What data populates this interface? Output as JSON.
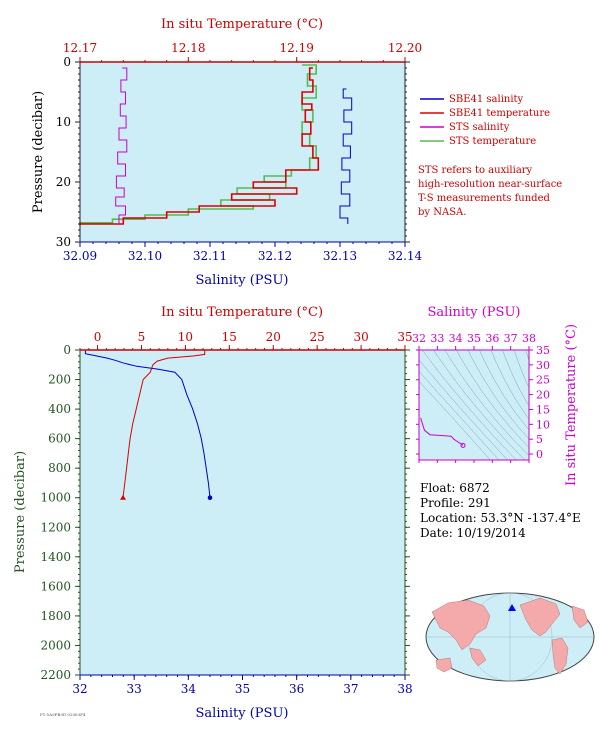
{
  "float_info": {
    "float": "Float:  6872",
    "profile": "Profile:  291",
    "location": "Location:  53.3°N  -137.4°E",
    "date": "Date:  10/19/2014"
  },
  "footnote": "STS refers to auxiliary high-resolution near-surface T-S measurements funded by NASA.",
  "footnote_lines": [
    "STS refers to auxiliary",
    "high-resolution near-surface",
    "T-S measurements funded",
    "by NASA."
  ],
  "colors": {
    "panel_bg": "#cdeef6",
    "sbe_salinity": "#0000cc",
    "sbe_temperature": "#dd0000",
    "sts_salinity": "#cc00cc",
    "sts_temperature": "#55bb55",
    "temp_axis": "#cc0000",
    "sal_axis": "#0000aa",
    "pres_axis": "#225522",
    "ts_axis": "#cc00cc"
  },
  "chart_data": [
    {
      "type": "line",
      "id": "near-surface",
      "xlabel_top": "In situ Temperature (°C)",
      "xlabel_bottom": "Salinity (PSU)",
      "ylabel": "Pressure (decibar)",
      "temp_ticks": [
        "12.17",
        "12.18",
        "12.19",
        "12.20"
      ],
      "temp_lim": [
        12.17,
        12.2
      ],
      "sal_ticks": [
        "32.09",
        "32.10",
        "32.11",
        "32.12",
        "32.13",
        "32.14"
      ],
      "sal_lim": [
        32.09,
        32.14
      ],
      "pres_ticks": [
        "0",
        "10",
        "20",
        "30"
      ],
      "pres_lim": [
        0,
        30
      ],
      "legend_position": "right",
      "legend": [
        "SBE41 salinity",
        "SBE41 temperature",
        "STS salinity",
        "STS temperature"
      ],
      "series": [
        {
          "name": "SBE41 salinity",
          "axis": "salinity",
          "points": [
            [
              32.131,
              4.5
            ],
            [
              32.1305,
              6
            ],
            [
              32.1318,
              8
            ],
            [
              32.1306,
              10
            ],
            [
              32.1318,
              12
            ],
            [
              32.1305,
              14
            ],
            [
              32.1316,
              16
            ],
            [
              32.1303,
              18
            ],
            [
              32.1315,
              20
            ],
            [
              32.1302,
              22
            ],
            [
              32.1315,
              24
            ],
            [
              32.13,
              26
            ],
            [
              32.1312,
              27
            ]
          ]
        },
        {
          "name": "SBE41 temperature",
          "axis": "temperature",
          "points": [
            [
              12.1915,
              1
            ],
            [
              12.1912,
              3
            ],
            [
              12.1915,
              5
            ],
            [
              12.1905,
              7
            ],
            [
              12.1914,
              8
            ],
            [
              12.1908,
              10
            ],
            [
              12.1913,
              12
            ],
            [
              12.1905,
              14
            ],
            [
              12.1915,
              16
            ],
            [
              12.192,
              18
            ],
            [
              12.189,
              20
            ],
            [
              12.186,
              21
            ],
            [
              12.19,
              22
            ],
            [
              12.184,
              23
            ],
            [
              12.188,
              24
            ],
            [
              12.181,
              25
            ],
            [
              12.178,
              26
            ],
            [
              12.174,
              27
            ],
            [
              12.17,
              27.2
            ]
          ]
        },
        {
          "name": "STS salinity",
          "axis": "salinity",
          "points": [
            [
              32.0965,
              1
            ],
            [
              32.0972,
              3
            ],
            [
              32.0963,
              5
            ],
            [
              32.097,
              7
            ],
            [
              32.0962,
              9
            ],
            [
              32.0971,
              11
            ],
            [
              32.096,
              13
            ],
            [
              32.0972,
              15
            ],
            [
              32.0958,
              17
            ],
            [
              32.097,
              19
            ],
            [
              32.0956,
              21
            ],
            [
              32.0968,
              22.5
            ],
            [
              32.0955,
              24
            ],
            [
              32.097,
              25.5
            ],
            [
              32.096,
              27
            ]
          ]
        },
        {
          "name": "STS temperature",
          "axis": "temperature",
          "points": [
            [
              12.1905,
              0.5
            ],
            [
              12.1918,
              2
            ],
            [
              12.191,
              4
            ],
            [
              12.1918,
              6
            ],
            [
              12.1905,
              8
            ],
            [
              12.1915,
              10
            ],
            [
              12.1905,
              12
            ],
            [
              12.1912,
              14
            ],
            [
              12.1918,
              16
            ],
            [
              12.1912,
              18
            ],
            [
              12.1895,
              19
            ],
            [
              12.187,
              20
            ],
            [
              12.189,
              21
            ],
            [
              12.1845,
              22
            ],
            [
              12.1875,
              23
            ],
            [
              12.183,
              24
            ],
            [
              12.186,
              24.5
            ],
            [
              12.18,
              25.5
            ],
            [
              12.176,
              26.2
            ],
            [
              12.173,
              26.8
            ],
            [
              12.17,
              27
            ]
          ]
        }
      ]
    },
    {
      "type": "line",
      "id": "full-profile",
      "xlabel_top": "In situ Temperature (°C)",
      "xlabel_bottom": "Salinity (PSU)",
      "ylabel": "Pressure (decibar)",
      "temp_ticks": [
        "0",
        "5",
        "10",
        "15",
        "20",
        "25",
        "30",
        "35"
      ],
      "temp_lim": [
        -2,
        35
      ],
      "sal_ticks": [
        "32",
        "33",
        "34",
        "35",
        "36",
        "37",
        "38"
      ],
      "sal_lim": [
        32,
        38
      ],
      "pres_ticks": [
        "0",
        "200",
        "400",
        "600",
        "800",
        "1000",
        "1200",
        "1400",
        "1600",
        "1800",
        "2000",
        "2200"
      ],
      "pres_lim": [
        0,
        2200
      ],
      "series": [
        {
          "name": "Salinity",
          "axis": "salinity",
          "points": [
            [
              32.1,
              5
            ],
            [
              32.1,
              25
            ],
            [
              32.3,
              40
            ],
            [
              32.5,
              55
            ],
            [
              32.65,
              70
            ],
            [
              32.82,
              90
            ],
            [
              33.05,
              110
            ],
            [
              33.45,
              130
            ],
            [
              33.75,
              150
            ],
            [
              33.88,
              200
            ],
            [
              33.97,
              300
            ],
            [
              34.08,
              400
            ],
            [
              34.17,
              500
            ],
            [
              34.24,
              600
            ],
            [
              34.29,
              700
            ],
            [
              34.33,
              800
            ],
            [
              34.37,
              900
            ],
            [
              34.4,
              1000
            ]
          ]
        },
        {
          "name": "Temperature",
          "axis": "temperature",
          "points": [
            [
              12.2,
              5
            ],
            [
              12.2,
              30
            ],
            [
              11.0,
              40
            ],
            [
              8.0,
              55
            ],
            [
              6.8,
              75
            ],
            [
              6.3,
              100
            ],
            [
              6.0,
              150
            ],
            [
              5.2,
              200
            ],
            [
              4.8,
              300
            ],
            [
              4.4,
              400
            ],
            [
              4.0,
              500
            ],
            [
              3.7,
              600
            ],
            [
              3.5,
              700
            ],
            [
              3.3,
              800
            ],
            [
              3.1,
              900
            ],
            [
              2.9,
              1000
            ]
          ]
        }
      ]
    },
    {
      "type": "line",
      "id": "ts-diagram",
      "xlabel_top": "Salinity (PSU)",
      "ylabel_right": "In situ Temperature (°C)",
      "sal_ticks": [
        "32",
        "33",
        "34",
        "35",
        "36",
        "37",
        "38"
      ],
      "sal_lim": [
        32,
        38
      ],
      "temp_ticks": [
        "0",
        "5",
        "10",
        "15",
        "20",
        "25",
        "30",
        "35"
      ],
      "temp_lim": [
        -2,
        35
      ],
      "points": [
        [
          32.1,
          12.2
        ],
        [
          32.12,
          11.5
        ],
        [
          32.3,
          8.0
        ],
        [
          32.6,
          6.5
        ],
        [
          33.3,
          6.2
        ],
        [
          33.75,
          6.0
        ],
        [
          33.9,
          5.0
        ],
        [
          34.05,
          4.4
        ],
        [
          34.2,
          3.8
        ],
        [
          34.3,
          3.4
        ],
        [
          34.4,
          2.9
        ]
      ]
    }
  ]
}
